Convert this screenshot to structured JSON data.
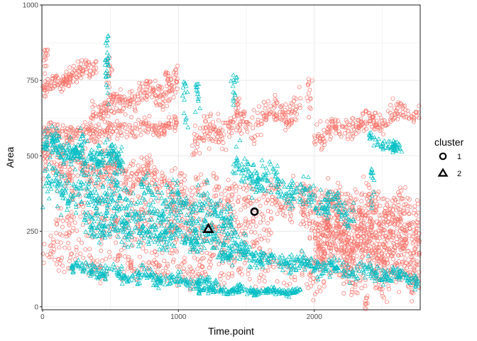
{
  "chart_data": {
    "type": "scatter",
    "xlabel": "Time.point",
    "ylabel": "Area",
    "xlim": [
      -5,
      2780
    ],
    "ylim": [
      -10,
      1000
    ],
    "x_ticks": [
      0,
      1000,
      2000
    ],
    "y_ticks": [
      0,
      250,
      500,
      750,
      1000
    ],
    "x_tick_labels": [
      "0",
      "1000",
      "2000"
    ],
    "y_tick_labels": [
      "0",
      "250",
      "500",
      "750",
      "1000"
    ],
    "grid": true,
    "legend": {
      "title": "cluster",
      "placement": "right",
      "entries": [
        {
          "label": "1",
          "shape": "circle"
        },
        {
          "label": "2",
          "shape": "triangle"
        }
      ]
    },
    "series": [
      {
        "name": "1",
        "color": "#F8766D",
        "shape": "circle",
        "bands": [
          {
            "x": [
              0,
              400
            ],
            "y": [
              720,
              800
            ],
            "spread": 30,
            "n": 140
          },
          {
            "x": [
              350,
              1000
            ],
            "y": [
              640,
              740
            ],
            "spread": 45,
            "n": 220
          },
          {
            "x": [
              1100,
              1900
            ],
            "y": [
              560,
              660
            ],
            "spread": 50,
            "n": 240
          },
          {
            "x": [
              2000,
              2780
            ],
            "y": [
              570,
              650
            ],
            "spread": 35,
            "n": 220
          },
          {
            "x": [
              0,
              1000
            ],
            "y": [
              570,
              600
            ],
            "spread": 30,
            "n": 260
          },
          {
            "x": [
              0,
              900
            ],
            "y": [
              480,
              420
            ],
            "spread": 70,
            "n": 320
          },
          {
            "x": [
              100,
              1700
            ],
            "y": [
              300,
              250
            ],
            "spread": 100,
            "n": 420
          },
          {
            "x": [
              900,
              2780
            ],
            "y": [
              390,
              330
            ],
            "spread": 60,
            "n": 380
          },
          {
            "x": [
              2000,
              2780
            ],
            "y": [
              220,
              180
            ],
            "spread": 90,
            "n": 520
          },
          {
            "x": [
              0,
              2780
            ],
            "y": [
              160,
              90
            ],
            "spread": 60,
            "n": 420
          },
          {
            "x": [
              1900,
              2780
            ],
            "y": [
              290,
              260
            ],
            "spread": 80,
            "n": 300
          }
        ],
        "bursts": [
          {
            "x": 20,
            "y": 865
          },
          {
            "x": 490,
            "y": 830
          },
          {
            "x": 920,
            "y": 780
          },
          {
            "x": 1440,
            "y": 700
          },
          {
            "x": 1960,
            "y": 755
          },
          {
            "x": 2380,
            "y": 40
          }
        ],
        "centroid": {
          "x": 1560,
          "y": 315
        }
      },
      {
        "name": "2",
        "color": "#00BFC4",
        "shape": "triangle",
        "bands": [
          {
            "x": [
              0,
              600
            ],
            "y": [
              540,
              480
            ],
            "spread": 50,
            "n": 260
          },
          {
            "x": [
              0,
              1400
            ],
            "y": [
              400,
              300
            ],
            "spread": 70,
            "n": 460
          },
          {
            "x": [
              300,
              1500
            ],
            "y": [
              280,
              200
            ],
            "spread": 50,
            "n": 320
          },
          {
            "x": [
              1400,
              2300
            ],
            "y": [
              470,
              300
            ],
            "spread": 50,
            "n": 260
          },
          {
            "x": [
              1300,
              2780
            ],
            "y": [
              180,
              90
            ],
            "spread": 30,
            "n": 380
          },
          {
            "x": [
              200,
              1300
            ],
            "y": [
              130,
              70
            ],
            "spread": 25,
            "n": 260
          },
          {
            "x": [
              1150,
              1900
            ],
            "y": [
              55,
              50
            ],
            "spread": 12,
            "n": 200
          },
          {
            "x": [
              2400,
              2650
            ],
            "y": [
              560,
              520
            ],
            "spread": 20,
            "n": 60
          }
        ],
        "bursts": [
          {
            "x": 480,
            "y": 900
          },
          {
            "x": 470,
            "y": 820
          },
          {
            "x": 1050,
            "y": 750
          },
          {
            "x": 1410,
            "y": 775
          },
          {
            "x": 1140,
            "y": 740
          },
          {
            "x": 2430,
            "y": 460
          }
        ],
        "centroid": {
          "x": 1220,
          "y": 258
        }
      }
    ]
  }
}
